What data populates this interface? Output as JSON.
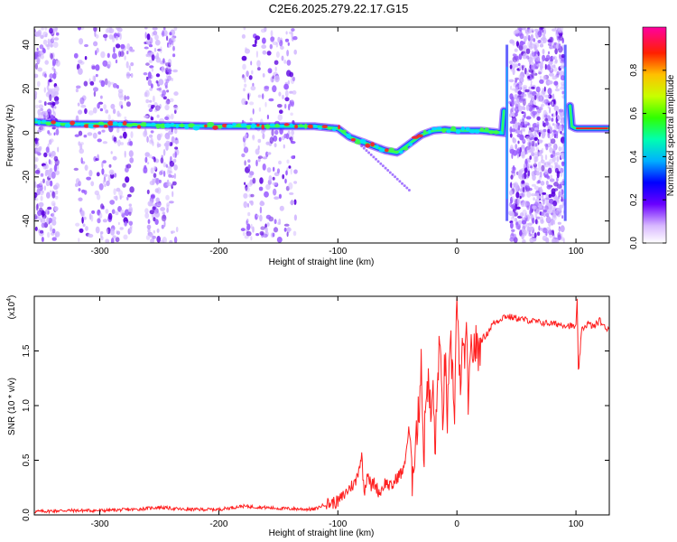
{
  "title": "C2E6.2025.279.22.17.G15",
  "chart_data": [
    {
      "type": "heatmap",
      "xlabel": "Height of straight line (km)",
      "ylabel": "Frequency (Hz)",
      "xlim": [
        -355,
        128
      ],
      "ylim": [
        -50,
        48
      ],
      "x_ticks": [
        "-300",
        "-200",
        "-100",
        "0",
        "100"
      ],
      "x_tick_values": [
        -300,
        -200,
        -100,
        0,
        100
      ],
      "y_ticks": [
        "-40",
        "-20",
        "0",
        "20",
        "40"
      ],
      "y_tick_values": [
        -40,
        -20,
        0,
        20,
        40
      ],
      "colorbar": {
        "label": "Normalized spectral amplitude",
        "range": [
          0,
          1
        ],
        "ticks": [
          "0.0",
          "0.2",
          "0.4",
          "0.6",
          "0.8"
        ],
        "tick_values": [
          0,
          0.2,
          0.4,
          0.6,
          0.8
        ]
      },
      "ridge": {
        "x": [
          -355,
          -330,
          -300,
          -250,
          -200,
          -150,
          -120,
          -100,
          -90,
          -80,
          -70,
          -60,
          -50,
          -40,
          -30,
          -20,
          -10,
          0,
          20,
          38,
          44,
          92,
          96,
          100,
          128
        ],
        "y": [
          5,
          4,
          4,
          3.5,
          3,
          3,
          3,
          2,
          -2,
          -4,
          -6,
          -8,
          -9,
          -5,
          -1,
          1,
          1.5,
          1,
          1,
          0,
          40,
          40,
          3,
          2,
          2
        ]
      },
      "noisy_bands_x": [
        [
          -355,
          -335
        ],
        [
          -320,
          -272
        ],
        [
          -262,
          -235
        ],
        [
          -180,
          -135
        ],
        [
          45,
          90
        ]
      ]
    },
    {
      "type": "line",
      "xlabel": "Height of straight line (km)",
      "ylabel": "SNR (10 * v/v)",
      "multiplier": "(x10",
      "multiplier_exp": "4",
      "multiplier_close": ")",
      "xlim": [
        -355,
        128
      ],
      "ylim": [
        0,
        2.0
      ],
      "x_ticks": [
        "-300",
        "-200",
        "-100",
        "0",
        "100"
      ],
      "x_tick_values": [
        -300,
        -200,
        -100,
        0,
        100
      ],
      "y_ticks": [
        "0.0",
        "0.5",
        "1.0",
        "1.5"
      ],
      "y_tick_values": [
        0,
        0.5,
        1.0,
        1.5
      ],
      "line_color": "#ff2020",
      "series": [
        {
          "x": [
            -355,
            -330,
            -300,
            -270,
            -250,
            -230,
            -200,
            -180,
            -150,
            -120,
            -110,
            -100,
            -95,
            -90,
            -85,
            -80,
            -78,
            -75,
            -72,
            -70,
            -65,
            -60,
            -55,
            -50,
            -45,
            -40,
            -38,
            -35,
            -32,
            -30,
            -28,
            -25,
            -22,
            -20,
            -18,
            -15,
            -12,
            -10,
            -8,
            -5,
            -2,
            0,
            2,
            5,
            8,
            10,
            12,
            15,
            18,
            20,
            25,
            30,
            35,
            40,
            50,
            60,
            70,
            80,
            90,
            100,
            101,
            102,
            105,
            110,
            115,
            120,
            125,
            128
          ],
          "y": [
            0.03,
            0.04,
            0.04,
            0.05,
            0.07,
            0.05,
            0.05,
            0.08,
            0.06,
            0.05,
            0.1,
            0.12,
            0.18,
            0.25,
            0.3,
            0.55,
            0.2,
            0.4,
            0.25,
            0.3,
            0.2,
            0.3,
            0.25,
            0.35,
            0.4,
            0.8,
            0.3,
            0.7,
            0.9,
            1.5,
            0.5,
            1.3,
            0.9,
            1.1,
            0.6,
            1.6,
            0.9,
            1.4,
            0.9,
            1.5,
            1.0,
            2.0,
            1.2,
            1.45,
            1.55,
            1.0,
            1.5,
            1.55,
            1.5,
            1.6,
            1.65,
            1.75,
            1.78,
            1.82,
            1.8,
            1.78,
            1.76,
            1.75,
            1.74,
            1.72,
            1.95,
            1.3,
            1.7,
            1.75,
            1.72,
            1.78,
            1.7,
            1.72
          ]
        }
      ]
    }
  ]
}
